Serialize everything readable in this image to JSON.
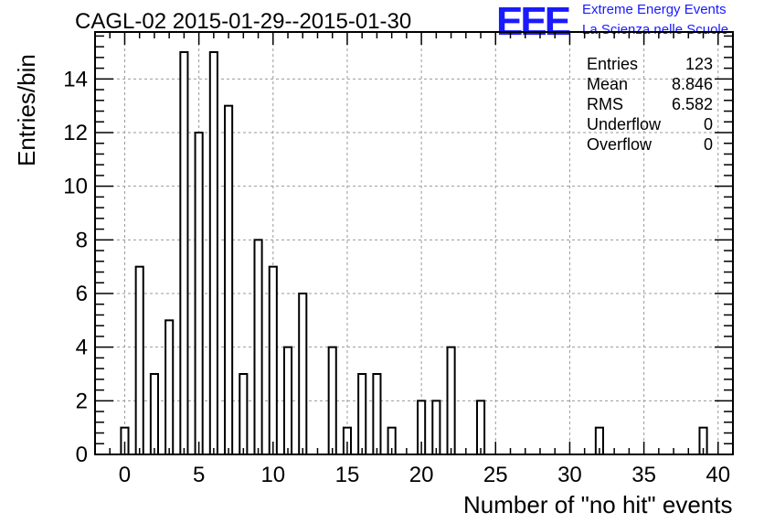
{
  "chart_data": {
    "type": "bar",
    "title": "CAGL-02 2015-01-29--2015-01-30",
    "xlabel": "Number of \"no hit\" events",
    "ylabel": "Entries/bin",
    "xlim": [
      -2,
      41
    ],
    "ylim": [
      0,
      15.75
    ],
    "bin_width": 1,
    "bar_width_fraction": 0.5,
    "xticks": [
      0,
      5,
      10,
      15,
      20,
      25,
      30,
      35,
      40
    ],
    "yticks": [
      0,
      2,
      4,
      6,
      8,
      10,
      12,
      14
    ],
    "grid": true,
    "bins": [
      {
        "x": 0,
        "y": 1
      },
      {
        "x": 1,
        "y": 7
      },
      {
        "x": 2,
        "y": 3
      },
      {
        "x": 3,
        "y": 5
      },
      {
        "x": 4,
        "y": 15
      },
      {
        "x": 5,
        "y": 12
      },
      {
        "x": 6,
        "y": 15
      },
      {
        "x": 7,
        "y": 13
      },
      {
        "x": 8,
        "y": 3
      },
      {
        "x": 9,
        "y": 8
      },
      {
        "x": 10,
        "y": 7
      },
      {
        "x": 11,
        "y": 4
      },
      {
        "x": 12,
        "y": 6
      },
      {
        "x": 14,
        "y": 4
      },
      {
        "x": 15,
        "y": 1
      },
      {
        "x": 16,
        "y": 3
      },
      {
        "x": 17,
        "y": 3
      },
      {
        "x": 18,
        "y": 1
      },
      {
        "x": 20,
        "y": 2
      },
      {
        "x": 21,
        "y": 2
      },
      {
        "x": 22,
        "y": 4
      },
      {
        "x": 24,
        "y": 2
      },
      {
        "x": 32,
        "y": 1
      },
      {
        "x": 39,
        "y": 1
      }
    ],
    "stats": [
      {
        "label": "Entries",
        "value": "123"
      },
      {
        "label": "Mean",
        "value": "8.846"
      },
      {
        "label": "RMS",
        "value": "6.582"
      },
      {
        "label": "Underflow",
        "value": "0"
      },
      {
        "label": "Overflow",
        "value": "0"
      }
    ]
  },
  "logo": {
    "text": "EEE",
    "line1": "Extreme Energy Events",
    "line2": "La Scienza nelle Scuole",
    "color": "#1a1aff"
  }
}
